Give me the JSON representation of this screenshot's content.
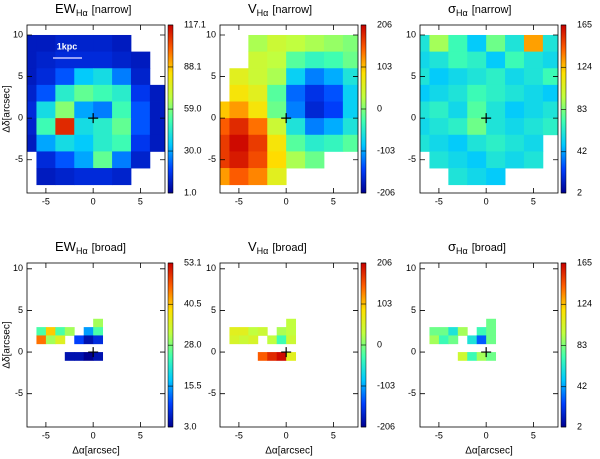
{
  "colormap": [
    "#000090",
    "#0040ff",
    "#00c8ff",
    "#40ffb0",
    "#c0ff40",
    "#ffe000",
    "#ff6000",
    "#c80000"
  ],
  "chart_data": [
    {
      "type": "heatmap",
      "title": "EW",
      "title_sub": "Hα",
      "subtitle": "[narrow]",
      "ylabel": "Δδ[arcsec]",
      "annotation": "1kpc",
      "x": [
        -7,
        -5,
        -3,
        -1,
        1,
        3,
        5,
        7
      ],
      "y": [
        9,
        7,
        5,
        3,
        1,
        -1,
        -3,
        -5,
        -7
      ],
      "z": [
        [
          8,
          8,
          10,
          10,
          10,
          8,
          null,
          null
        ],
        [
          8,
          10,
          12,
          12,
          12,
          10,
          8,
          null
        ],
        [
          8,
          12,
          20,
          35,
          40,
          25,
          10,
          null
        ],
        [
          10,
          20,
          45,
          55,
          50,
          45,
          15,
          8
        ],
        [
          12,
          40,
          60,
          30,
          25,
          50,
          20,
          8
        ],
        [
          10,
          50,
          110,
          40,
          45,
          55,
          20,
          8
        ],
        [
          8,
          30,
          40,
          35,
          45,
          50,
          15,
          8
        ],
        [
          null,
          12,
          20,
          30,
          55,
          25,
          10,
          null
        ],
        [
          null,
          8,
          10,
          12,
          12,
          10,
          null,
          null
        ]
      ],
      "clim": [
        1.0,
        117.1
      ],
      "cticks": [
        117.1,
        88.1,
        {
          "value": 59,
          "label": "59.0"
        },
        {
          "value": 30,
          "label": "30.0"
        },
        {
          "value": 1,
          "label": "1.0"
        }
      ],
      "xlim": [
        -7,
        7.6
      ],
      "ylim": [
        -9,
        11.2
      ],
      "xticks": [
        -5,
        0,
        5
      ],
      "yticks": [
        -5,
        0,
        5,
        10
      ]
    },
    {
      "type": "heatmap",
      "title": "V",
      "title_sub": "Hα",
      "subtitle": "[narrow]",
      "x": [
        -7,
        -5,
        -3,
        -1,
        1,
        3,
        5,
        7
      ],
      "y": [
        9,
        7,
        5,
        3,
        1,
        -1,
        -3,
        -5,
        -7
      ],
      "z": [
        [
          null,
          null,
          20,
          40,
          30,
          20,
          10,
          0
        ],
        [
          null,
          null,
          40,
          30,
          -20,
          -40,
          -30,
          -10
        ],
        [
          null,
          60,
          40,
          20,
          -80,
          -120,
          -100,
          -60
        ],
        [
          null,
          80,
          60,
          -20,
          -130,
          -160,
          -140,
          -80
        ],
        [
          100,
          120,
          80,
          -10,
          -120,
          -170,
          -150,
          -80
        ],
        [
          150,
          180,
          140,
          40,
          -60,
          -120,
          -100,
          -60
        ],
        [
          170,
          200,
          170,
          80,
          -20,
          -50,
          -40,
          -20
        ],
        [
          170,
          190,
          160,
          90,
          20,
          -10,
          null,
          null
        ],
        [
          120,
          150,
          130,
          60,
          null,
          null,
          null,
          null
        ]
      ],
      "clim": [
        -206,
        206
      ],
      "cticks": [
        206,
        103,
        0,
        -103,
        -206
      ],
      "xlim": [
        -7,
        7.6
      ],
      "ylim": [
        -9,
        11.2
      ],
      "xticks": [
        -5,
        0,
        5
      ],
      "yticks": [
        -5,
        0,
        5,
        10
      ]
    },
    {
      "type": "heatmap",
      "title": "σ",
      "title_sub": "Hα",
      "subtitle": "[narrow]",
      "x": [
        -7,
        -5,
        -3,
        -1,
        1,
        3,
        5,
        7
      ],
      "y": [
        9,
        7,
        5,
        3,
        1,
        -1,
        -3,
        -5,
        -7
      ],
      "z": [
        [
          60,
          90,
          70,
          50,
          80,
          60,
          130,
          60
        ],
        [
          55,
          60,
          70,
          65,
          50,
          70,
          60,
          55
        ],
        [
          60,
          50,
          55,
          60,
          65,
          55,
          60,
          70
        ],
        [
          50,
          55,
          60,
          70,
          65,
          60,
          55,
          50
        ],
        [
          60,
          65,
          55,
          75,
          60,
          50,
          55,
          60
        ],
        [
          55,
          60,
          65,
          80,
          60,
          55,
          60,
          65
        ],
        [
          60,
          55,
          50,
          60,
          65,
          60,
          55,
          null
        ],
        [
          null,
          60,
          55,
          50,
          60,
          55,
          60,
          null
        ],
        [
          null,
          null,
          60,
          55,
          50,
          null,
          null,
          null
        ]
      ],
      "clim": [
        2,
        165
      ],
      "cticks": [
        165,
        124,
        83,
        42,
        2
      ],
      "xlim": [
        -7,
        7.6
      ],
      "ylim": [
        -9,
        11.2
      ],
      "xticks": [
        -5,
        0,
        5
      ],
      "yticks": [
        -5,
        0,
        5,
        10
      ]
    },
    {
      "type": "heatmap",
      "title": "EW",
      "title_sub": "Hα",
      "subtitle": "[broad]",
      "ylabel": "Δδ[arcsec]",
      "xlabel": "Δα[arcsec]",
      "x": [
        -5.5,
        -4.5,
        -3.5,
        -2.5,
        -1.5,
        -0.5,
        0.5,
        1.5
      ],
      "y": [
        3.5,
        2.5,
        1.5,
        0.5,
        -0.5
      ],
      "z": [
        [
          null,
          null,
          null,
          null,
          null,
          null,
          30,
          null
        ],
        [
          25,
          40,
          25,
          30,
          null,
          15,
          25,
          null
        ],
        [
          45,
          30,
          35,
          null,
          10,
          5,
          8,
          null
        ],
        [
          null,
          null,
          null,
          null,
          null,
          null,
          null,
          null
        ],
        [
          null,
          null,
          null,
          5,
          5,
          3,
          5,
          null
        ]
      ],
      "clim": [
        3.0,
        53.1
      ],
      "cticks": [
        53.1,
        40.5,
        {
          "value": 28,
          "label": "28.0"
        },
        15.5,
        {
          "value": 3,
          "label": "3.0"
        }
      ],
      "xlim": [
        -7,
        7.6
      ],
      "ylim": [
        -9,
        10.7
      ],
      "xticks": [
        -5,
        0,
        5
      ],
      "yticks": [
        -5,
        0,
        5,
        10
      ]
    },
    {
      "type": "heatmap",
      "title": "V",
      "title_sub": "Hα",
      "subtitle": "[broad]",
      "xlabel": "Δα[arcsec]",
      "x": [
        -5.5,
        -4.5,
        -3.5,
        -2.5,
        -1.5,
        -0.5,
        0.5,
        1.5
      ],
      "y": [
        3.5,
        2.5,
        1.5,
        0.5,
        -0.5
      ],
      "z": [
        [
          null,
          null,
          null,
          null,
          null,
          null,
          30,
          null
        ],
        [
          60,
          60,
          30,
          40,
          null,
          20,
          30,
          null
        ],
        [
          50,
          40,
          50,
          null,
          30,
          -30,
          40,
          null
        ],
        [
          null,
          null,
          null,
          null,
          null,
          null,
          null,
          null
        ],
        [
          null,
          null,
          null,
          150,
          180,
          200,
          60,
          null
        ]
      ],
      "clim": [
        -206,
        206
      ],
      "cticks": [
        206,
        103,
        0,
        -103,
        -206
      ],
      "xlim": [
        -7,
        7.6
      ],
      "ylim": [
        -9,
        10.7
      ],
      "xticks": [
        -5,
        0,
        5
      ],
      "yticks": [
        -5,
        0,
        5,
        10
      ]
    },
    {
      "type": "heatmap",
      "title": "σ",
      "title_sub": "Hα",
      "subtitle": "[broad]",
      "xlabel": "Δα[arcsec]",
      "x": [
        -5.5,
        -4.5,
        -3.5,
        -2.5,
        -1.5,
        -0.5,
        0.5,
        1.5
      ],
      "y": [
        3.5,
        2.5,
        1.5,
        0.5,
        -0.5
      ],
      "z": [
        [
          null,
          null,
          null,
          null,
          null,
          null,
          80,
          null
        ],
        [
          80,
          80,
          60,
          90,
          null,
          70,
          80,
          null
        ],
        [
          90,
          70,
          80,
          null,
          60,
          30,
          80,
          null
        ],
        [
          null,
          null,
          null,
          null,
          null,
          null,
          null,
          null
        ],
        [
          null,
          null,
          null,
          100,
          70,
          90,
          80,
          null
        ]
      ],
      "clim": [
        2,
        165
      ],
      "cticks": [
        165,
        124,
        83,
        42,
        2
      ],
      "xlim": [
        -7,
        7.6
      ],
      "ylim": [
        -9,
        10.7
      ],
      "xticks": [
        -5,
        0,
        5
      ],
      "yticks": [
        -5,
        0,
        5,
        10
      ]
    }
  ]
}
